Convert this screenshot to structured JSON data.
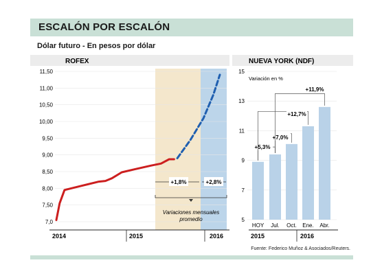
{
  "title": "ESCALÓN POR ESCALÓN",
  "subtitle": "Dólar futuro - En pesos por dólar",
  "source": "Fuente: Federico Muñoz & Asociados/Reuters.",
  "colors": {
    "accent_band": "#c9e0d6",
    "line_actual": "#cc1f1f",
    "line_future": "#1f5fb0",
    "shade_2015": "#f4e7cc",
    "shade_2016": "#bcd5ea",
    "bars": "#b9d2e8",
    "header_band": "#ececec"
  },
  "chart_data": [
    {
      "type": "line",
      "title": "ROFEX",
      "ylim": [
        7.0,
        11.5
      ],
      "y_ticks": [
        "11,50",
        "11,00",
        "10,50",
        "10,00",
        "9,50",
        "9,00",
        "8,50",
        "8,00",
        "7,50",
        "7,0"
      ],
      "x_labels": [
        "2014",
        "2015",
        "2016"
      ],
      "series": [
        {
          "style": "solid",
          "points": [
            {
              "t": 0.0,
              "y": 7.05
            },
            {
              "t": 0.02,
              "y": 7.55
            },
            {
              "t": 0.05,
              "y": 7.95
            },
            {
              "t": 0.15,
              "y": 8.07
            },
            {
              "t": 0.26,
              "y": 8.2
            },
            {
              "t": 0.3,
              "y": 8.22
            },
            {
              "t": 0.34,
              "y": 8.3
            },
            {
              "t": 0.4,
              "y": 8.48
            },
            {
              "t": 0.48,
              "y": 8.57
            },
            {
              "t": 0.58,
              "y": 8.68
            },
            {
              "t": 0.64,
              "y": 8.74
            },
            {
              "t": 0.69,
              "y": 8.87
            },
            {
              "t": 0.72,
              "y": 8.87
            }
          ]
        },
        {
          "style": "dashed",
          "points": [
            {
              "t": 0.74,
              "y": 8.9
            },
            {
              "t": 0.82,
              "y": 9.45
            },
            {
              "t": 0.9,
              "y": 10.1
            },
            {
              "t": 0.96,
              "y": 10.8
            },
            {
              "t": 1.0,
              "y": 11.4
            }
          ]
        }
      ],
      "annotations": {
        "variation_1": "+1,8%",
        "variation_2": "+2,8%",
        "note_line1": "Variaciones mensuales",
        "note_line2": "promedio"
      }
    },
    {
      "type": "bar",
      "title": "NUEVA YORK (NDF)",
      "ylabel": "Variación en %",
      "ylim": [
        5,
        15
      ],
      "y_ticks": [
        "15",
        "13",
        "11",
        "9",
        "7",
        "5"
      ],
      "categories": [
        "HOY",
        "Jul.",
        "Oct.",
        "Ene.",
        "Abr."
      ],
      "values": [
        8.9,
        9.4,
        10.1,
        11.3,
        12.6
      ],
      "year_labels": [
        "2015",
        "2016"
      ],
      "annotations": [
        "+5,3%",
        "+7,0%",
        "+12,7%",
        "+11,9%"
      ]
    }
  ]
}
